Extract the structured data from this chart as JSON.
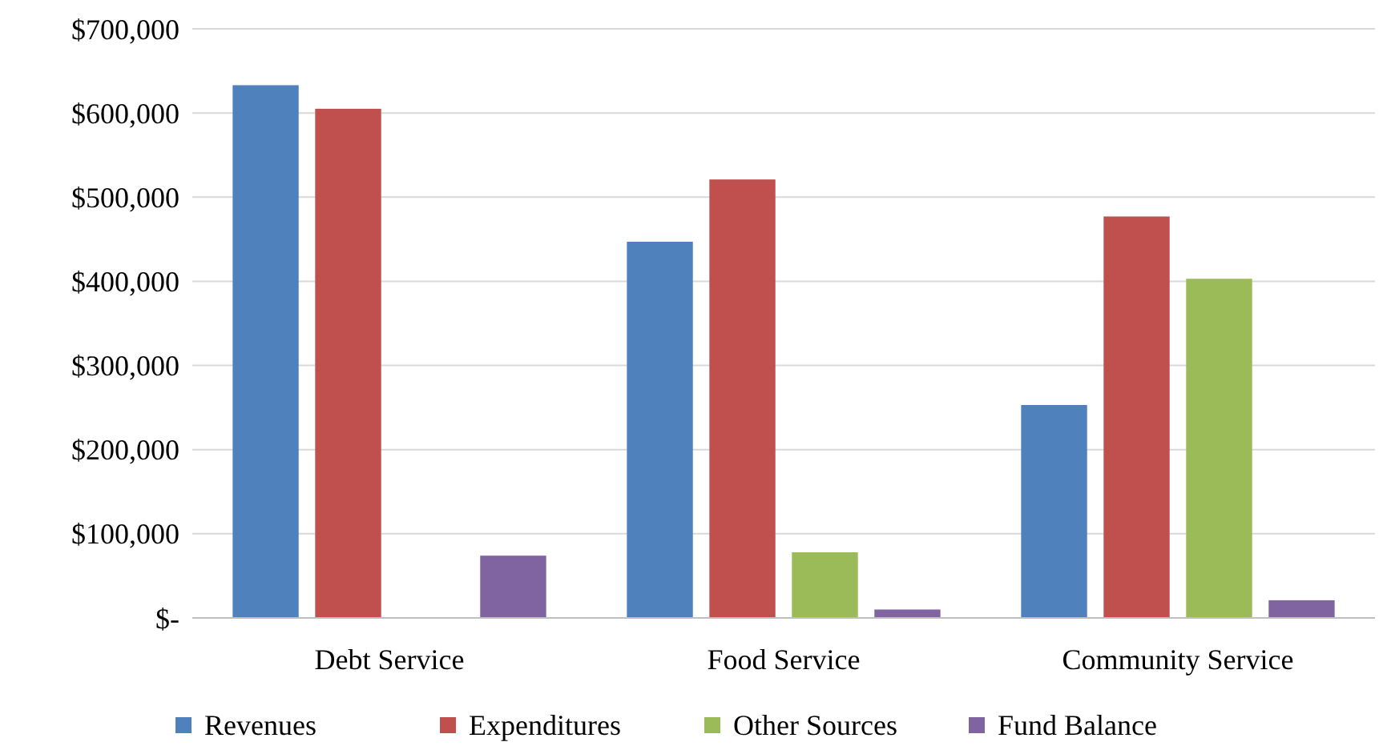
{
  "chart_data": {
    "type": "bar",
    "categories": [
      "Debt Service",
      "Food Service",
      "Community Service"
    ],
    "series": [
      {
        "name": "Revenues",
        "color": "#4f81bd",
        "values": [
          633000,
          447000,
          253000
        ]
      },
      {
        "name": "Expenditures",
        "color": "#c0504d",
        "values": [
          605000,
          521000,
          477000
        ]
      },
      {
        "name": "Other Sources",
        "color": "#9bbb59",
        "values": [
          null,
          78000,
          403000
        ]
      },
      {
        "name": "Fund Balance",
        "color": "#8064a2",
        "values": [
          74000,
          10000,
          21000
        ]
      }
    ],
    "ylim": [
      0,
      700000
    ],
    "yticks": [
      {
        "value": 0,
        "label": "$-"
      },
      {
        "value": 100000,
        "label": "$100,000"
      },
      {
        "value": 200000,
        "label": "$200,000"
      },
      {
        "value": 300000,
        "label": "$300,000"
      },
      {
        "value": 400000,
        "label": "$400,000"
      },
      {
        "value": 500000,
        "label": "$500,000"
      },
      {
        "value": 600000,
        "label": "$600,000"
      },
      {
        "value": 700000,
        "label": "$700,000"
      }
    ],
    "grid": "y",
    "legend": "bottom"
  }
}
